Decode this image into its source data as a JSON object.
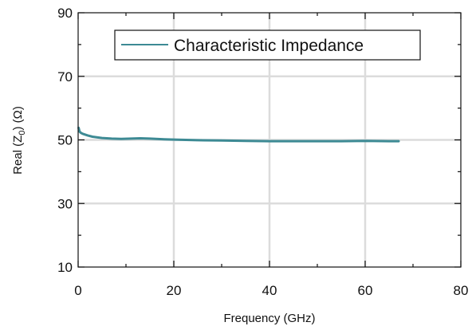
{
  "chart_data": {
    "type": "line",
    "xlabel": "Frequency (GHz)",
    "ylabel": {
      "prefix": "Real (Z",
      "sub": "0",
      "suffix": ") (Ω)"
    },
    "xlim": [
      0,
      80
    ],
    "ylim": [
      10,
      90
    ],
    "xticks": [
      0,
      20,
      40,
      60,
      80
    ],
    "yticks": [
      10,
      30,
      50,
      70,
      90
    ],
    "grid": true,
    "legend_position": "top",
    "series": [
      {
        "name": "Characteristic Impedance",
        "color": "#3d8a94",
        "x": [
          0.1,
          0.3,
          0.6,
          1.0,
          2.0,
          3.0,
          5.0,
          7.0,
          9.0,
          11.0,
          13.0,
          15.0,
          18.0,
          20.0,
          25.0,
          30.0,
          35.0,
          40.0,
          45.0,
          50.0,
          55.0,
          60.0,
          65.0,
          67.0
        ],
        "y": [
          53.8,
          52.6,
          52.2,
          51.9,
          51.4,
          51.0,
          50.6,
          50.4,
          50.3,
          50.4,
          50.5,
          50.4,
          50.2,
          50.1,
          49.9,
          49.8,
          49.7,
          49.6,
          49.6,
          49.6,
          49.6,
          49.7,
          49.6,
          49.6
        ]
      }
    ]
  }
}
